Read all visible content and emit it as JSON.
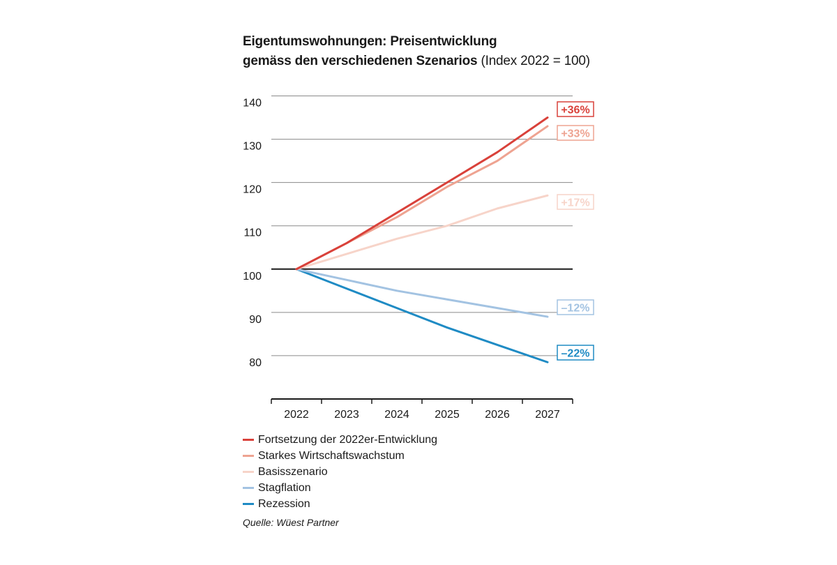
{
  "title": {
    "line1": "Eigentumswohnungen: Preisentwicklung",
    "line2_bold": "gemäss den verschiedenen Szenarios",
    "line2_normal": " (Index 2022 = 100)"
  },
  "source": "Quelle: Wüest Partner",
  "chart_data": {
    "type": "line",
    "x": [
      "2022",
      "2023",
      "2024",
      "2025",
      "2026",
      "2027"
    ],
    "ylim": [
      70,
      140
    ],
    "yticks": [
      80,
      90,
      100,
      110,
      120,
      130,
      140
    ],
    "baseline": 100,
    "grid": true,
    "series": [
      {
        "name": "Fortsetzung der 2022er-Entwicklung",
        "color": "#d9413a",
        "values": [
          100,
          106,
          113,
          120,
          127,
          135
        ],
        "end_label": "+36%"
      },
      {
        "name": "Starkes Wirtschaftswachstum",
        "color": "#eea391",
        "values": [
          100,
          106,
          112,
          119,
          125,
          133
        ],
        "end_label": "+33%"
      },
      {
        "name": "Basisszenario",
        "color": "#f7d4c9",
        "values": [
          100,
          103.5,
          107,
          110,
          114,
          117
        ],
        "end_label": "+17%"
      },
      {
        "name": "Stagflation",
        "color": "#a3c3e2",
        "values": [
          100,
          97.5,
          95,
          93,
          91,
          89
        ],
        "end_label": "–12%"
      },
      {
        "name": "Rezession",
        "color": "#1f8bc4",
        "values": [
          100,
          95.5,
          91,
          86.5,
          82.5,
          78.5
        ],
        "end_label": "–22%"
      }
    ]
  }
}
